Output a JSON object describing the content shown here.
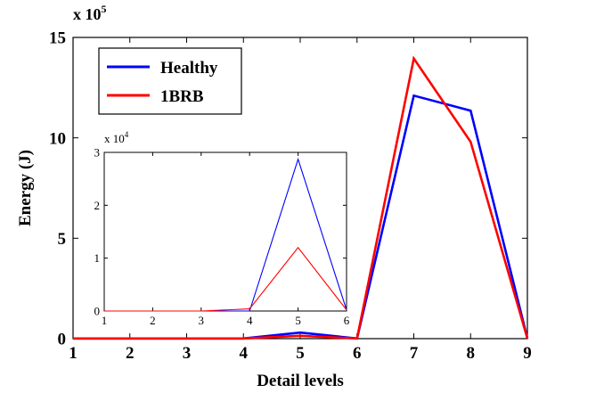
{
  "chart_data": [
    {
      "type": "line",
      "title": "",
      "xlabel": "Detail levels",
      "ylabel": "Energy (J)",
      "y_exponent_label": "x 10",
      "y_exponent_power": "5",
      "x": [
        1,
        2,
        3,
        4,
        5,
        6,
        7,
        8,
        9
      ],
      "xticks": [
        "1",
        "2",
        "3",
        "4",
        "5",
        "6",
        "7",
        "8",
        "9"
      ],
      "yticks": [
        {
          "value": 0,
          "label": "0"
        },
        {
          "value": 5,
          "label": "5"
        },
        {
          "value": 10,
          "label": "10"
        },
        {
          "value": 15,
          "label": "15"
        }
      ],
      "xlim": [
        1,
        9
      ],
      "ylim": [
        0,
        15
      ],
      "grid": false,
      "legend_position": "top-left",
      "series": [
        {
          "name": "Healthy",
          "color": "#0000ff",
          "values": [
            0.01,
            0.01,
            0.01,
            0.01,
            0.3,
            0.01,
            12.1,
            11.35,
            0.01
          ]
        },
        {
          "name": "1BRB",
          "color": "#ff0000",
          "values": [
            0.01,
            0.01,
            0.01,
            0.01,
            0.14,
            0.01,
            13.95,
            9.8,
            0.01
          ]
        }
      ]
    },
    {
      "type": "line",
      "title": "",
      "inset": true,
      "y_exponent_label": "x 10",
      "y_exponent_power": "4",
      "x": [
        1,
        2,
        3,
        4,
        5,
        6
      ],
      "xticks": [
        "1",
        "2",
        "3",
        "4",
        "5",
        "6"
      ],
      "yticks": [
        {
          "value": 0,
          "label": "0"
        },
        {
          "value": 1,
          "label": "1"
        },
        {
          "value": 2,
          "label": "2"
        },
        {
          "value": 3,
          "label": "3"
        }
      ],
      "xlim": [
        1,
        6
      ],
      "ylim": [
        0,
        3
      ],
      "grid": false,
      "series": [
        {
          "color": "#0000ff",
          "values": [
            0.0,
            0.0,
            0.0,
            0.0,
            2.87,
            0.02
          ]
        },
        {
          "color": "#ff0000",
          "values": [
            0.0,
            0.0,
            0.0,
            0.04,
            1.2,
            0.02
          ]
        }
      ]
    }
  ]
}
